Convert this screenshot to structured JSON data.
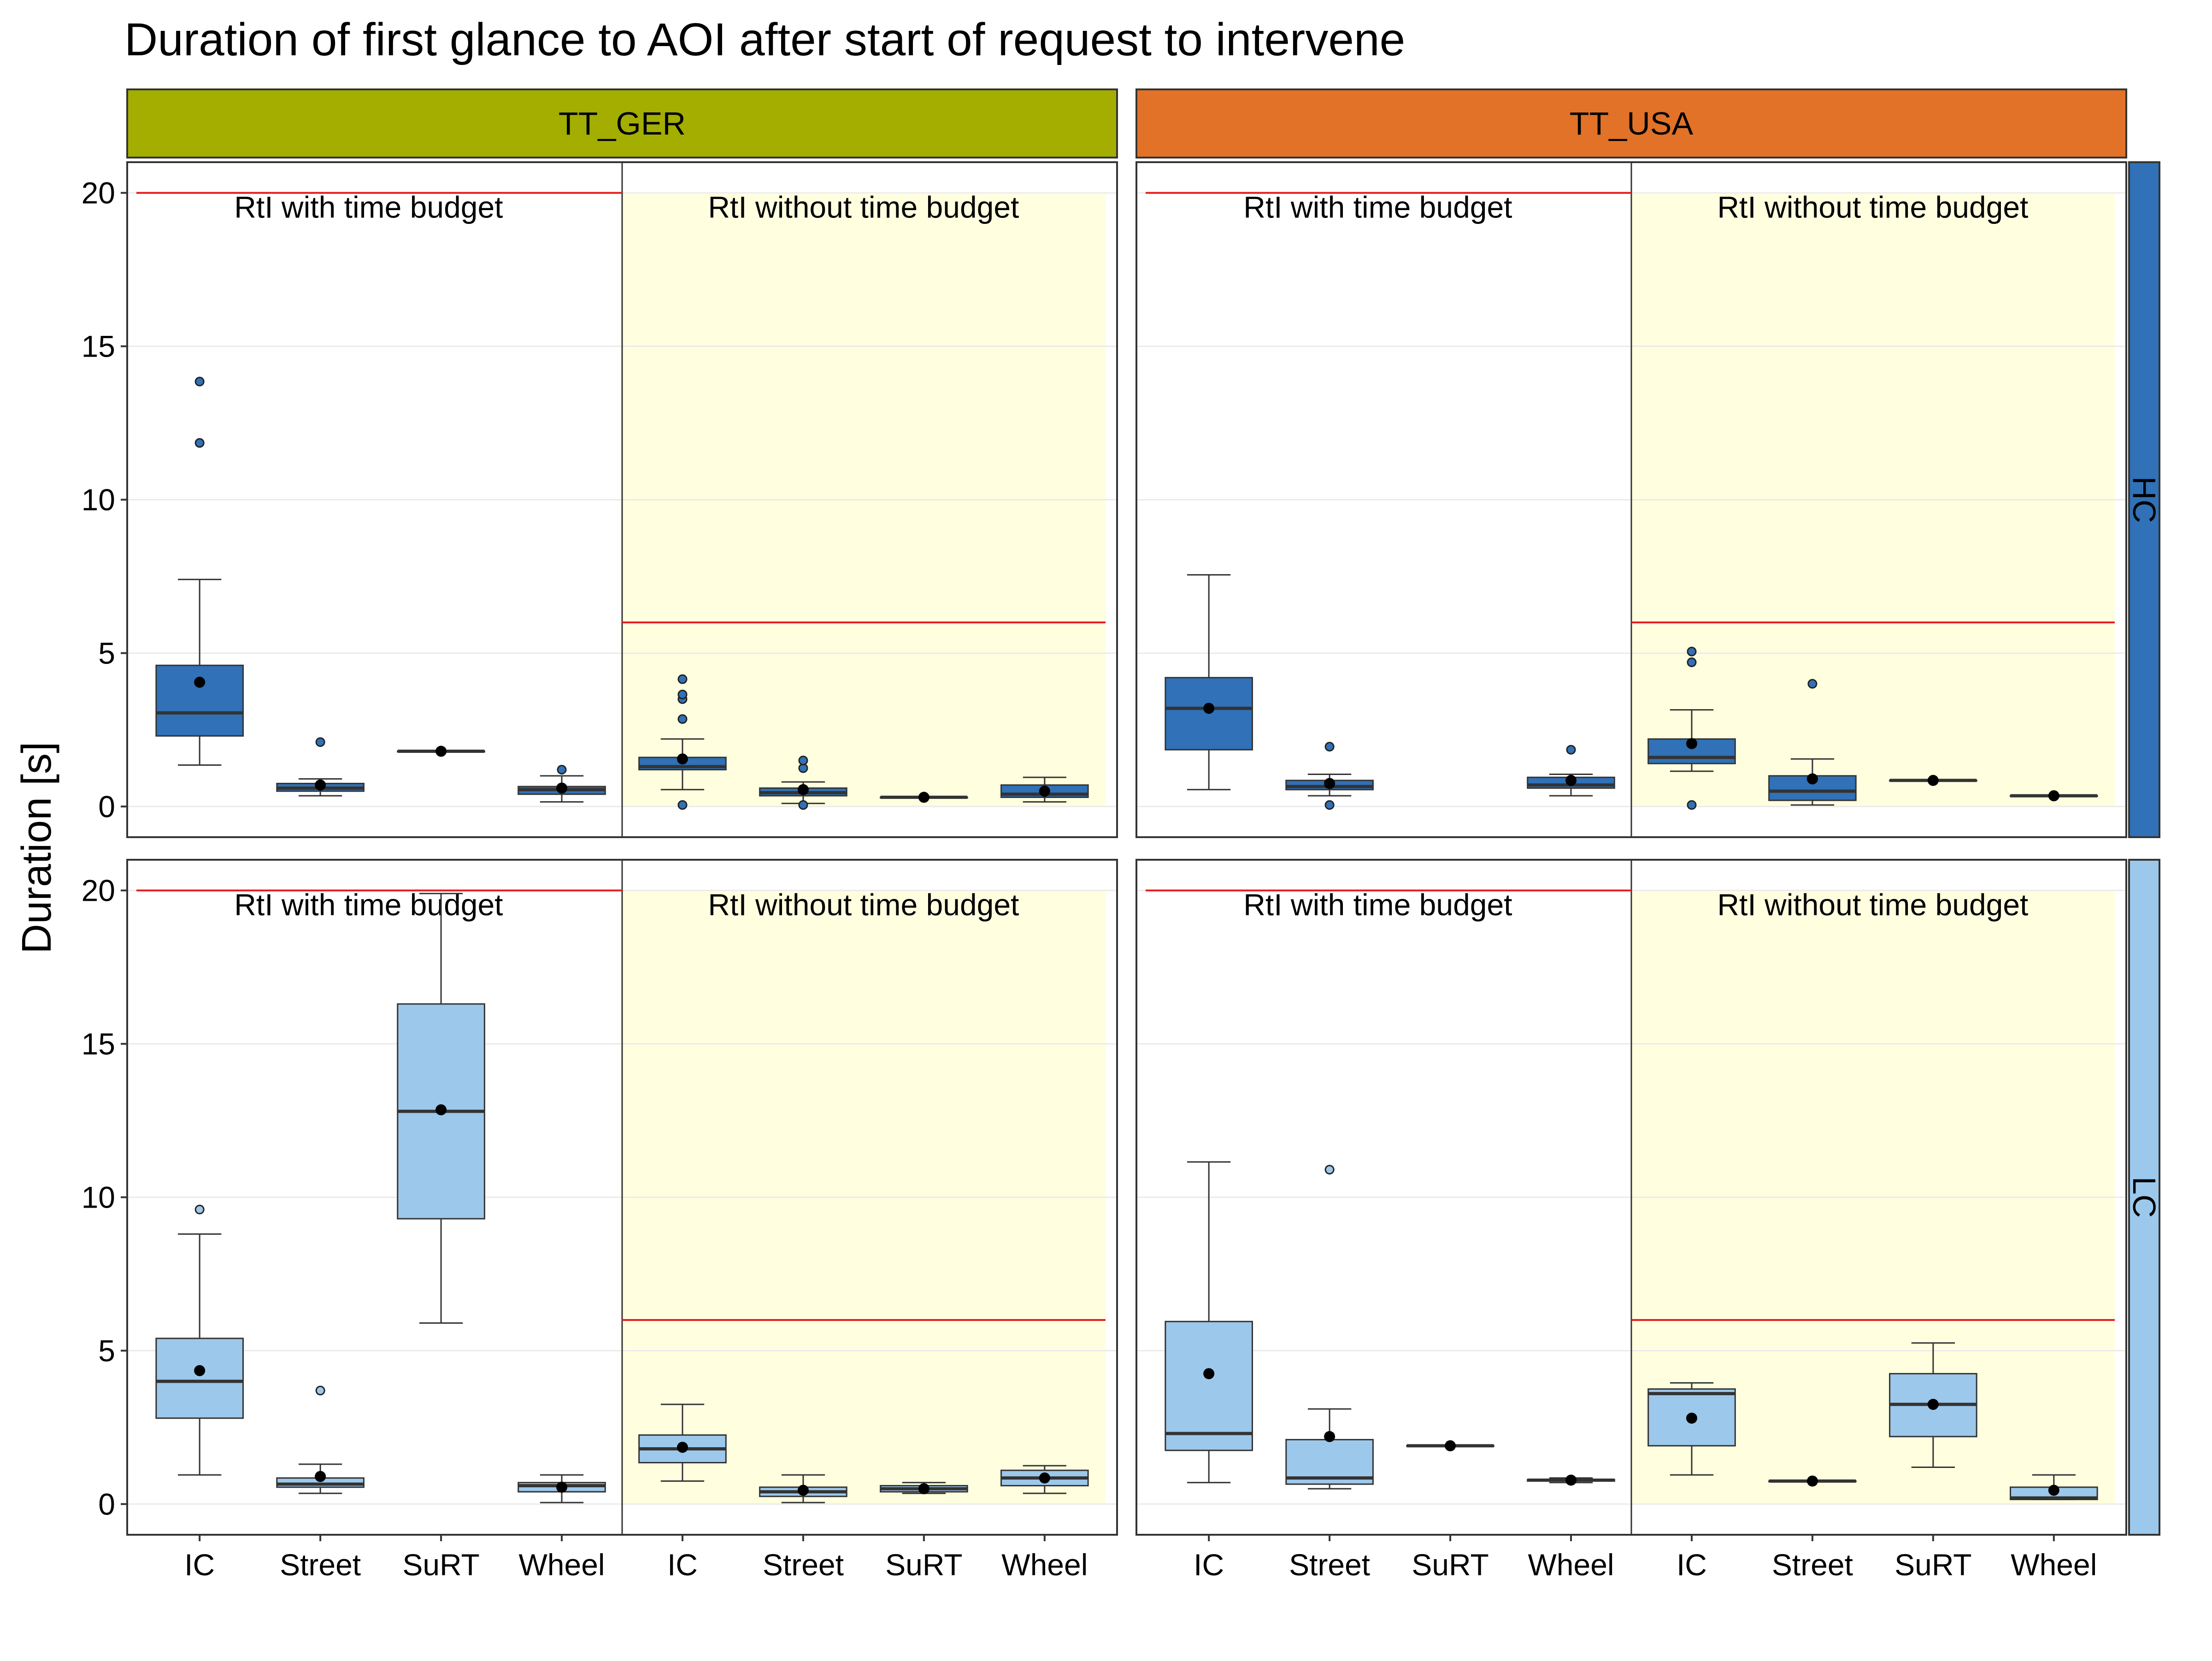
{
  "chart_data": {
    "type": "boxplot",
    "title": "Duration of first glance to AOI after start of request to intervene",
    "ylabel": "Duration [s]",
    "xlabel": "",
    "ylim": [
      -1,
      21
    ],
    "y_ticks": [
      0,
      5,
      10,
      15,
      20
    ],
    "grid": true,
    "facet_columns": [
      {
        "label": "TT_GER",
        "color": "#a3ae00"
      },
      {
        "label": "TT_USA",
        "color": "#e27227"
      }
    ],
    "facet_rows": [
      {
        "label": "HC",
        "color": "#3071b7"
      },
      {
        "label": "LC",
        "color": "#9cc8eb"
      }
    ],
    "conditions": [
      {
        "label": "RtI with time budget",
        "reference_line": 20,
        "background": "#ffffff"
      },
      {
        "label": "RtI without time budget",
        "reference_line": 6,
        "background": "#ffffe0"
      }
    ],
    "categories": [
      "IC",
      "Street",
      "SuRT",
      "Wheel"
    ],
    "reference_line_color": "#e31a1c",
    "panels": [
      {
        "column": "TT_GER",
        "row": "HC",
        "boxes": [
          {
            "condition": "RtI with time budget",
            "category": "IC",
            "whisker_low": 1.35,
            "q1": 2.3,
            "median": 3.05,
            "q3": 4.6,
            "whisker_high": 7.4,
            "mean": 4.05,
            "outliers": [
              11.85,
              13.85
            ]
          },
          {
            "condition": "RtI with time budget",
            "category": "Street",
            "whisker_low": 0.35,
            "q1": 0.5,
            "median": 0.6,
            "q3": 0.75,
            "whisker_high": 0.9,
            "mean": 0.7,
            "outliers": [
              2.1
            ]
          },
          {
            "condition": "RtI with time budget",
            "category": "SuRT",
            "whisker_low": 1.8,
            "q1": 1.8,
            "median": 1.8,
            "q3": 1.8,
            "whisker_high": 1.8,
            "mean": 1.8,
            "outliers": []
          },
          {
            "condition": "RtI with time budget",
            "category": "Wheel",
            "whisker_low": 0.15,
            "q1": 0.4,
            "median": 0.55,
            "q3": 0.65,
            "whisker_high": 1.0,
            "mean": 0.6,
            "outliers": [
              1.2
            ]
          },
          {
            "condition": "RtI without time budget",
            "category": "IC",
            "whisker_low": 0.55,
            "q1": 1.2,
            "median": 1.3,
            "q3": 1.6,
            "whisker_high": 2.2,
            "mean": 1.55,
            "outliers": [
              0.05,
              2.85,
              3.5,
              3.65,
              4.15
            ]
          },
          {
            "condition": "RtI without time budget",
            "category": "Street",
            "whisker_low": 0.1,
            "q1": 0.35,
            "median": 0.45,
            "q3": 0.6,
            "whisker_high": 0.8,
            "mean": 0.55,
            "outliers": [
              0.05,
              1.25,
              1.5
            ]
          },
          {
            "condition": "RtI without time budget",
            "category": "SuRT",
            "whisker_low": 0.3,
            "q1": 0.3,
            "median": 0.3,
            "q3": 0.3,
            "whisker_high": 0.3,
            "mean": 0.3,
            "outliers": []
          },
          {
            "condition": "RtI without time budget",
            "category": "Wheel",
            "whisker_low": 0.15,
            "q1": 0.3,
            "median": 0.4,
            "q3": 0.7,
            "whisker_high": 0.95,
            "mean": 0.5,
            "outliers": []
          }
        ]
      },
      {
        "column": "TT_USA",
        "row": "HC",
        "boxes": [
          {
            "condition": "RtI with time budget",
            "category": "IC",
            "whisker_low": 0.55,
            "q1": 1.85,
            "median": 3.2,
            "q3": 4.2,
            "whisker_high": 7.55,
            "mean": 3.2,
            "outliers": []
          },
          {
            "condition": "RtI with time budget",
            "category": "Street",
            "whisker_low": 0.35,
            "q1": 0.55,
            "median": 0.65,
            "q3": 0.85,
            "whisker_high": 1.05,
            "mean": 0.75,
            "outliers": [
              0.05,
              1.95
            ]
          },
          {
            "condition": "RtI with time budget",
            "category": "Wheel",
            "whisker_low": 0.35,
            "q1": 0.6,
            "median": 0.7,
            "q3": 0.95,
            "whisker_high": 1.05,
            "mean": 0.85,
            "outliers": [
              1.85
            ]
          },
          {
            "condition": "RtI without time budget",
            "category": "IC",
            "whisker_low": 1.15,
            "q1": 1.4,
            "median": 1.6,
            "q3": 2.2,
            "whisker_high": 3.15,
            "mean": 2.05,
            "outliers": [
              0.05,
              4.7,
              5.05
            ]
          },
          {
            "condition": "RtI without time budget",
            "category": "Street",
            "whisker_low": 0.05,
            "q1": 0.2,
            "median": 0.5,
            "q3": 1.0,
            "whisker_high": 1.55,
            "mean": 0.9,
            "outliers": [
              4.0
            ]
          },
          {
            "condition": "RtI without time budget",
            "category": "SuRT",
            "whisker_low": 0.85,
            "q1": 0.85,
            "median": 0.85,
            "q3": 0.85,
            "whisker_high": 0.85,
            "mean": 0.85,
            "outliers": []
          },
          {
            "condition": "RtI without time budget",
            "category": "Wheel",
            "whisker_low": 0.35,
            "q1": 0.35,
            "median": 0.35,
            "q3": 0.35,
            "whisker_high": 0.35,
            "mean": 0.35,
            "outliers": []
          }
        ]
      },
      {
        "column": "TT_GER",
        "row": "LC",
        "boxes": [
          {
            "condition": "RtI with time budget",
            "category": "IC",
            "whisker_low": 0.95,
            "q1": 2.8,
            "median": 4.0,
            "q3": 5.4,
            "whisker_high": 8.8,
            "mean": 4.35,
            "outliers": [
              9.6
            ]
          },
          {
            "condition": "RtI with time budget",
            "category": "Street",
            "whisker_low": 0.35,
            "q1": 0.55,
            "median": 0.65,
            "q3": 0.85,
            "whisker_high": 1.3,
            "mean": 0.9,
            "outliers": [
              3.7
            ]
          },
          {
            "condition": "RtI with time budget",
            "category": "SuRT",
            "whisker_low": 5.9,
            "q1": 9.3,
            "median": 12.8,
            "q3": 16.3,
            "whisker_high": 19.9,
            "mean": 12.85,
            "outliers": []
          },
          {
            "condition": "RtI with time budget",
            "category": "Wheel",
            "whisker_low": 0.05,
            "q1": 0.4,
            "median": 0.6,
            "q3": 0.7,
            "whisker_high": 0.95,
            "mean": 0.55,
            "outliers": []
          },
          {
            "condition": "RtI without time budget",
            "category": "IC",
            "whisker_low": 0.75,
            "q1": 1.35,
            "median": 1.8,
            "q3": 2.25,
            "whisker_high": 3.25,
            "mean": 1.85,
            "outliers": []
          },
          {
            "condition": "RtI without time budget",
            "category": "Street",
            "whisker_low": 0.05,
            "q1": 0.25,
            "median": 0.4,
            "q3": 0.55,
            "whisker_high": 0.95,
            "mean": 0.45,
            "outliers": []
          },
          {
            "condition": "RtI without time budget",
            "category": "SuRT",
            "whisker_low": 0.35,
            "q1": 0.4,
            "median": 0.5,
            "q3": 0.6,
            "whisker_high": 0.7,
            "mean": 0.5,
            "outliers": []
          },
          {
            "condition": "RtI without time budget",
            "category": "Wheel",
            "whisker_low": 0.35,
            "q1": 0.6,
            "median": 0.85,
            "q3": 1.1,
            "whisker_high": 1.25,
            "mean": 0.85,
            "outliers": []
          }
        ]
      },
      {
        "column": "TT_USA",
        "row": "LC",
        "boxes": [
          {
            "condition": "RtI with time budget",
            "category": "IC",
            "whisker_low": 0.7,
            "q1": 1.75,
            "median": 2.3,
            "q3": 5.95,
            "whisker_high": 11.15,
            "mean": 4.25,
            "outliers": []
          },
          {
            "condition": "RtI with time budget",
            "category": "Street",
            "whisker_low": 0.5,
            "q1": 0.65,
            "median": 0.85,
            "q3": 2.1,
            "whisker_high": 3.1,
            "mean": 2.2,
            "outliers": [
              10.9
            ]
          },
          {
            "condition": "RtI with time budget",
            "category": "SuRT",
            "whisker_low": 1.9,
            "q1": 1.9,
            "median": 1.9,
            "q3": 1.9,
            "whisker_high": 1.9,
            "mean": 1.9,
            "outliers": []
          },
          {
            "condition": "RtI with time budget",
            "category": "Wheel",
            "whisker_low": 0.7,
            "q1": 0.75,
            "median": 0.78,
            "q3": 0.8,
            "whisker_high": 0.85,
            "mean": 0.78,
            "outliers": []
          },
          {
            "condition": "RtI without time budget",
            "category": "IC",
            "whisker_low": 0.95,
            "q1": 1.9,
            "median": 3.6,
            "q3": 3.75,
            "whisker_high": 3.95,
            "mean": 2.8,
            "outliers": []
          },
          {
            "condition": "RtI without time budget",
            "category": "Street",
            "whisker_low": 0.75,
            "q1": 0.75,
            "median": 0.75,
            "q3": 0.75,
            "whisker_high": 0.75,
            "mean": 0.75,
            "outliers": []
          },
          {
            "condition": "RtI without time budget",
            "category": "SuRT",
            "whisker_low": 1.2,
            "q1": 2.2,
            "median": 3.25,
            "q3": 4.25,
            "whisker_high": 5.25,
            "mean": 3.25,
            "outliers": []
          },
          {
            "condition": "RtI without time budget",
            "category": "Wheel",
            "whisker_low": 0.15,
            "q1": 0.15,
            "median": 0.2,
            "q3": 0.55,
            "whisker_high": 0.95,
            "mean": 0.45,
            "outliers": []
          }
        ]
      }
    ]
  }
}
